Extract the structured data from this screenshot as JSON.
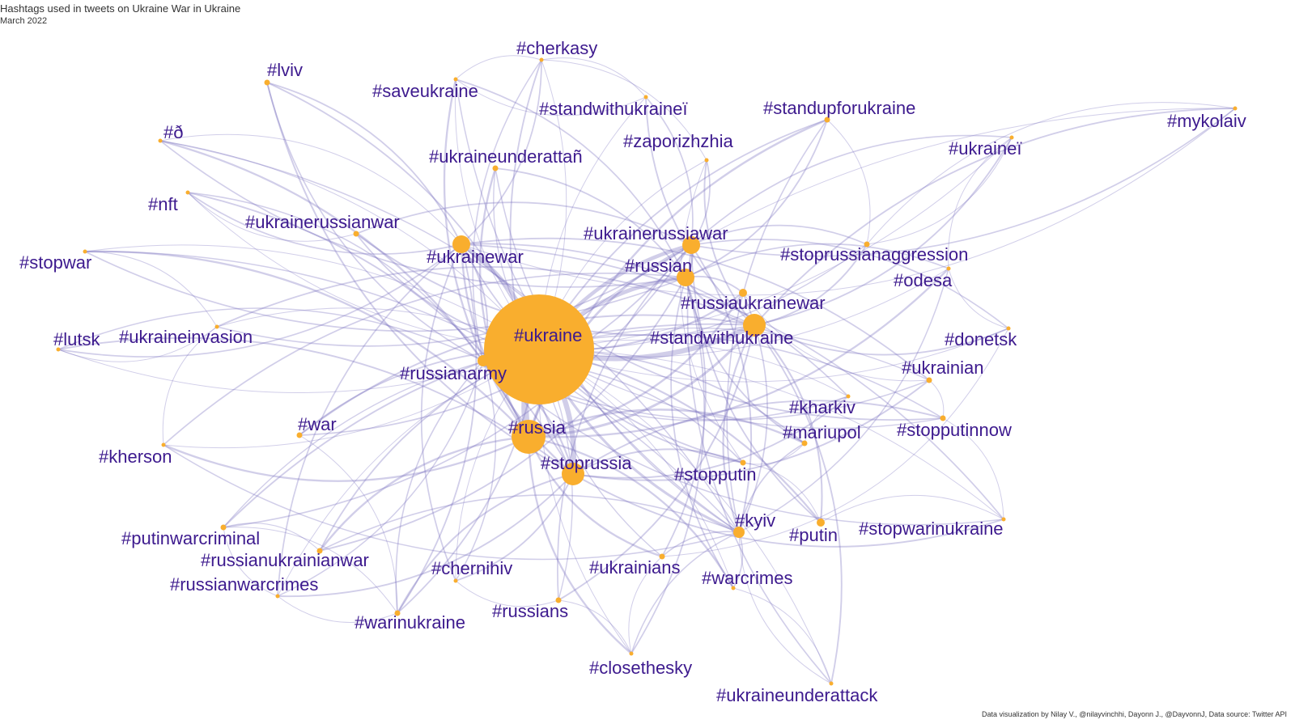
{
  "title": "Hashtags used in tweets on Ukraine War in Ukraine",
  "subtitle": "March 2022",
  "credit": "Data visualization by Nilay V., @nilayvinchhi, Dayonn J., @DayvonnJ, Data source: Twitter API",
  "colors": {
    "node": "#F9AE2E",
    "edge": "#7B74C0",
    "label": "#3D1A8E"
  },
  "nodes": [
    {
      "id": "ukraine",
      "label": "#ukraine",
      "weight": 100
    },
    {
      "id": "russia",
      "label": "#russia",
      "weight": 22
    },
    {
      "id": "stoprussia",
      "label": "#stoprussia",
      "weight": 14
    },
    {
      "id": "standwithukraine",
      "label": "#standwithukraine",
      "weight": 14
    },
    {
      "id": "russian",
      "label": "#russian",
      "weight": 11
    },
    {
      "id": "ukrainewar",
      "label": "#ukrainewar",
      "weight": 11
    },
    {
      "id": "ukrainerussiawar",
      "label": "#ukrainerussiawar",
      "weight": 10
    },
    {
      "id": "kyiv",
      "label": "#kyiv",
      "weight": 7
    },
    {
      "id": "russianarmy",
      "label": "#russianarmy",
      "weight": 7
    },
    {
      "id": "russiaukrainewar",
      "label": "#russiaukrainewar",
      "weight": 5
    },
    {
      "id": "putin",
      "label": "#putin",
      "weight": 5
    },
    {
      "id": "stopputin",
      "label": "#stopputin",
      "weight": 4
    },
    {
      "id": "mariupol",
      "label": "#mariupol",
      "weight": 4
    },
    {
      "id": "war",
      "label": "#war",
      "weight": 4
    },
    {
      "id": "warinukraine",
      "label": "#warinukraine",
      "weight": 4
    },
    {
      "id": "russianukrainianwar",
      "label": "#russianukrainianwar",
      "weight": 4
    },
    {
      "id": "ukrainerussianwar",
      "label": "#ukrainerussianwar",
      "weight": 4
    },
    {
      "id": "lviv",
      "label": "#lviv",
      "weight": 4
    },
    {
      "id": "standupforukraine",
      "label": "#standupforukraine",
      "weight": 4
    },
    {
      "id": "stoprussianaggression",
      "label": "#stoprussianaggression",
      "weight": 3
    },
    {
      "id": "ukrainian",
      "label": "#ukrainian",
      "weight": 3
    },
    {
      "id": "ukrainians",
      "label": "#ukrainians",
      "weight": 3
    },
    {
      "id": "russians",
      "label": "#russians",
      "weight": 3
    },
    {
      "id": "stopputinnow",
      "label": "#stopputinnow",
      "weight": 3
    },
    {
      "id": "ukraineunderattan",
      "label": "#ukraineunderattañ",
      "weight": 3
    },
    {
      "id": "putinwarcriminal",
      "label": "#putinwarcriminal",
      "weight": 3
    },
    {
      "id": "kharkiv",
      "label": "#kharkiv",
      "weight": 2
    },
    {
      "id": "odesa",
      "label": "#odesa",
      "weight": 2
    },
    {
      "id": "standwithukrainei",
      "label": "#standwithukraineï",
      "weight": 2
    },
    {
      "id": "cherkasy",
      "label": "#cherkasy",
      "weight": 2
    },
    {
      "id": "saveukraine",
      "label": "#saveukraine",
      "weight": 2
    },
    {
      "id": "ukrainei",
      "label": "#ukraineï",
      "weight": 2
    },
    {
      "id": "nft",
      "label": "#nft",
      "weight": 2
    },
    {
      "id": "d",
      "label": "#ð",
      "weight": 2
    },
    {
      "id": "zaporizhzhia",
      "label": "#zaporizhzhia",
      "weight": 2
    },
    {
      "id": "chernihiv",
      "label": "#chernihiv",
      "weight": 2
    },
    {
      "id": "warcrimes",
      "label": "#warcrimes",
      "weight": 2
    },
    {
      "id": "donetsk",
      "label": "#donetsk",
      "weight": 2
    },
    {
      "id": "stopwarinukraine",
      "label": "#stopwarinukraine",
      "weight": 2
    },
    {
      "id": "closethesky",
      "label": "#closethesky",
      "weight": 2
    },
    {
      "id": "ukraineunderattack",
      "label": "#ukraineunderattack",
      "weight": 2
    },
    {
      "id": "russianwarcrimes",
      "label": "#russianwarcrimes",
      "weight": 2
    },
    {
      "id": "kherson",
      "label": "#kherson",
      "weight": 2
    },
    {
      "id": "ukraineinvasion",
      "label": "#ukraineinvasion",
      "weight": 2
    },
    {
      "id": "lutsk",
      "label": "#lutsk",
      "weight": 2
    },
    {
      "id": "stopwar",
      "label": "#stopwar",
      "weight": 2
    },
    {
      "id": "mykolaiv",
      "label": "#mykolaiv",
      "weight": 2
    }
  ]
}
